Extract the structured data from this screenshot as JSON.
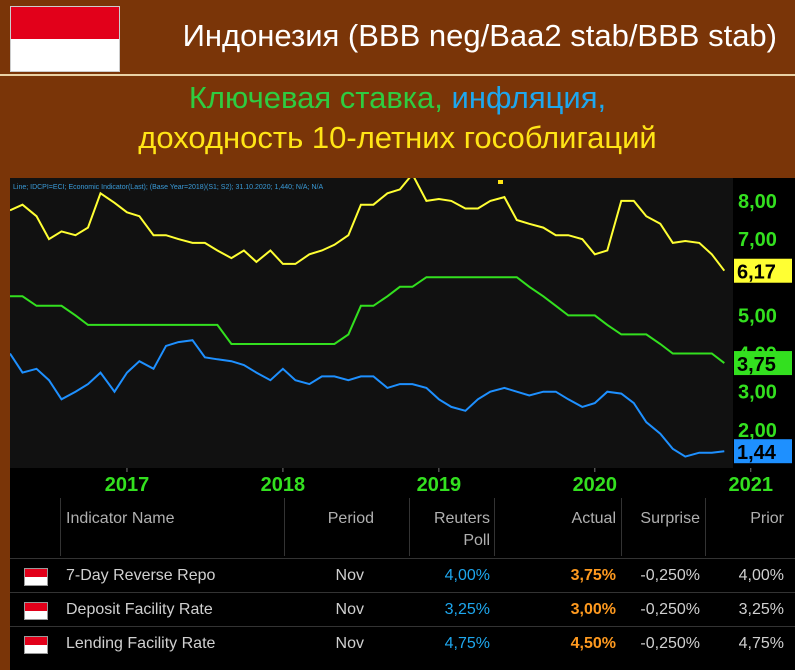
{
  "header": {
    "title": "Индонезия (BBB neg/Baa2 stab/BBB stab)",
    "subtitle_part1": "Ключевая ставка, ",
    "subtitle_part2": "инфляция,",
    "subtitle_line2": "доходность 10-летних гособлигаций"
  },
  "chart_data": {
    "type": "line",
    "legend_text": "Line; IDCPI=ECI; Economic Indicator(Last); (Base Year=2018)(S1; S2); 31.10.2020; 1,440; N/A; N/A",
    "x_tick_labels": [
      "2017",
      "2018",
      "2019",
      "2020",
      "2021"
    ],
    "y_tick_labels": [
      "8,00",
      "7,00",
      "5,00",
      "4,00",
      "3,00",
      "2,00"
    ],
    "ylim": [
      1,
      8.6
    ],
    "series": [
      {
        "color": "#ffff33",
        "last_label": "6,17",
        "points": [
          [
            2016.25,
            7.75
          ],
          [
            2016.33,
            7.9
          ],
          [
            2016.42,
            7.6
          ],
          [
            2016.5,
            7.0
          ],
          [
            2016.58,
            7.2
          ],
          [
            2016.67,
            7.1
          ],
          [
            2016.75,
            7.3
          ],
          [
            2016.83,
            8.2
          ],
          [
            2016.92,
            7.95
          ],
          [
            2017.0,
            7.7
          ],
          [
            2017.08,
            7.6
          ],
          [
            2017.17,
            7.1
          ],
          [
            2017.25,
            7.1
          ],
          [
            2017.33,
            7.0
          ],
          [
            2017.42,
            6.9
          ],
          [
            2017.5,
            6.9
          ],
          [
            2017.58,
            6.7
          ],
          [
            2017.67,
            6.5
          ],
          [
            2017.75,
            6.7
          ],
          [
            2017.83,
            6.4
          ],
          [
            2017.92,
            6.7
          ],
          [
            2018.0,
            6.35
          ],
          [
            2018.08,
            6.35
          ],
          [
            2018.17,
            6.6
          ],
          [
            2018.25,
            6.7
          ],
          [
            2018.33,
            6.85
          ],
          [
            2018.42,
            7.1
          ],
          [
            2018.5,
            7.9
          ],
          [
            2018.58,
            7.9
          ],
          [
            2018.67,
            8.2
          ],
          [
            2018.75,
            8.3
          ],
          [
            2018.83,
            8.7
          ],
          [
            2018.92,
            8.0
          ],
          [
            2019.0,
            8.05
          ],
          [
            2019.08,
            8.0
          ],
          [
            2019.17,
            7.8
          ],
          [
            2019.25,
            7.8
          ],
          [
            2019.33,
            8.0
          ],
          [
            2019.42,
            8.1
          ],
          [
            2019.5,
            7.5
          ],
          [
            2019.58,
            7.4
          ],
          [
            2019.67,
            7.3
          ],
          [
            2019.75,
            7.1
          ],
          [
            2019.83,
            7.1
          ],
          [
            2019.92,
            7.0
          ],
          [
            2020.0,
            6.6
          ],
          [
            2020.08,
            6.7
          ],
          [
            2020.17,
            8.0
          ],
          [
            2020.25,
            8.0
          ],
          [
            2020.33,
            7.6
          ],
          [
            2020.42,
            7.4
          ],
          [
            2020.5,
            6.9
          ],
          [
            2020.58,
            6.95
          ],
          [
            2020.67,
            6.9
          ],
          [
            2020.75,
            6.6
          ],
          [
            2020.83,
            6.17
          ]
        ]
      },
      {
        "color": "#33e01f",
        "last_label": "3,75",
        "points": [
          [
            2016.25,
            5.5
          ],
          [
            2016.33,
            5.5
          ],
          [
            2016.42,
            5.25
          ],
          [
            2016.58,
            5.25
          ],
          [
            2016.67,
            5.0
          ],
          [
            2016.75,
            4.75
          ],
          [
            2017.58,
            4.75
          ],
          [
            2017.67,
            4.25
          ],
          [
            2018.33,
            4.25
          ],
          [
            2018.42,
            4.5
          ],
          [
            2018.5,
            5.25
          ],
          [
            2018.58,
            5.25
          ],
          [
            2018.67,
            5.5
          ],
          [
            2018.75,
            5.75
          ],
          [
            2018.83,
            5.75
          ],
          [
            2018.92,
            6.0
          ],
          [
            2019.5,
            6.0
          ],
          [
            2019.58,
            5.75
          ],
          [
            2019.67,
            5.5
          ],
          [
            2019.75,
            5.25
          ],
          [
            2019.83,
            5.0
          ],
          [
            2020.0,
            5.0
          ],
          [
            2020.08,
            4.75
          ],
          [
            2020.17,
            4.5
          ],
          [
            2020.33,
            4.5
          ],
          [
            2020.42,
            4.25
          ],
          [
            2020.5,
            4.0
          ],
          [
            2020.67,
            4.0
          ],
          [
            2020.75,
            4.0
          ],
          [
            2020.83,
            3.75
          ]
        ]
      },
      {
        "color": "#1e90ff",
        "last_label": "1,44",
        "points": [
          [
            2016.25,
            4.0
          ],
          [
            2016.33,
            3.5
          ],
          [
            2016.42,
            3.6
          ],
          [
            2016.5,
            3.3
          ],
          [
            2016.58,
            2.8
          ],
          [
            2016.67,
            3.0
          ],
          [
            2016.75,
            3.2
          ],
          [
            2016.83,
            3.5
          ],
          [
            2016.92,
            3.0
          ],
          [
            2017.0,
            3.5
          ],
          [
            2017.08,
            3.8
          ],
          [
            2017.17,
            3.6
          ],
          [
            2017.25,
            4.2
          ],
          [
            2017.33,
            4.3
          ],
          [
            2017.42,
            4.35
          ],
          [
            2017.5,
            3.9
          ],
          [
            2017.58,
            3.85
          ],
          [
            2017.67,
            3.8
          ],
          [
            2017.75,
            3.7
          ],
          [
            2017.83,
            3.5
          ],
          [
            2017.92,
            3.3
          ],
          [
            2018.0,
            3.6
          ],
          [
            2018.08,
            3.3
          ],
          [
            2018.17,
            3.2
          ],
          [
            2018.25,
            3.4
          ],
          [
            2018.33,
            3.4
          ],
          [
            2018.42,
            3.3
          ],
          [
            2018.5,
            3.4
          ],
          [
            2018.58,
            3.4
          ],
          [
            2018.67,
            3.1
          ],
          [
            2018.75,
            3.2
          ],
          [
            2018.83,
            3.2
          ],
          [
            2018.92,
            3.1
          ],
          [
            2019.0,
            2.8
          ],
          [
            2019.08,
            2.6
          ],
          [
            2019.17,
            2.5
          ],
          [
            2019.25,
            2.8
          ],
          [
            2019.33,
            3.0
          ],
          [
            2019.42,
            3.1
          ],
          [
            2019.5,
            3.0
          ],
          [
            2019.58,
            2.9
          ],
          [
            2019.67,
            3.0
          ],
          [
            2019.75,
            3.0
          ],
          [
            2019.83,
            2.8
          ],
          [
            2019.92,
            2.6
          ],
          [
            2020.0,
            2.7
          ],
          [
            2020.08,
            3.0
          ],
          [
            2020.17,
            2.95
          ],
          [
            2020.25,
            2.7
          ],
          [
            2020.33,
            2.2
          ],
          [
            2020.42,
            1.9
          ],
          [
            2020.5,
            1.5
          ],
          [
            2020.58,
            1.3
          ],
          [
            2020.67,
            1.4
          ],
          [
            2020.75,
            1.4
          ],
          [
            2020.83,
            1.44
          ]
        ]
      }
    ],
    "grid": false
  },
  "table": {
    "headers": {
      "name": "Indicator Name",
      "period": "Period",
      "poll_1": "Reuters",
      "poll_2": "Poll",
      "actual": "Actual",
      "surprise": "Surprise",
      "prior": "Prior"
    },
    "rows": [
      {
        "name": "7-Day Reverse Repo",
        "period": "Nov",
        "poll": "4,00%",
        "actual": "3,75%",
        "surprise": "-0,250%",
        "prior": "4,00%"
      },
      {
        "name": "Deposit Facility Rate",
        "period": "Nov",
        "poll": "3,25%",
        "actual": "3,00%",
        "surprise": "-0,250%",
        "prior": "3,25%"
      },
      {
        "name": "Lending Facility Rate",
        "period": "Nov",
        "poll": "4,75%",
        "actual": "4,50%",
        "surprise": "-0,250%",
        "prior": "4,75%"
      }
    ]
  }
}
